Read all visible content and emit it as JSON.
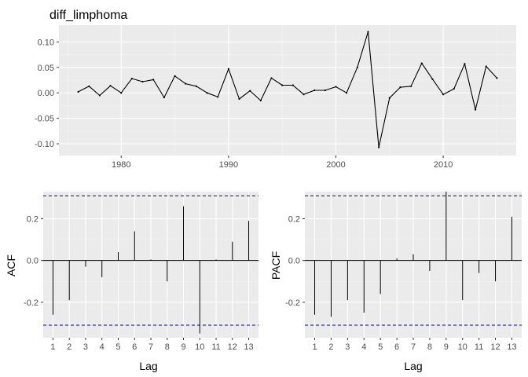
{
  "chart_data": [
    {
      "type": "line",
      "title": "diff_limphoma",
      "xlabel": "",
      "ylabel": "",
      "x": [
        1976,
        1977,
        1978,
        1979,
        1980,
        1981,
        1982,
        1983,
        1984,
        1985,
        1986,
        1987,
        1988,
        1989,
        1990,
        1991,
        1992,
        1993,
        1994,
        1995,
        1996,
        1997,
        1998,
        1999,
        2000,
        2001,
        2002,
        2003,
        2004,
        2005,
        2006,
        2007,
        2008,
        2009,
        2010,
        2011,
        2012,
        2013,
        2014,
        2015
      ],
      "y": [
        0.002,
        0.013,
        -0.005,
        0.014,
        0.0,
        0.028,
        0.022,
        0.026,
        -0.009,
        0.033,
        0.018,
        0.013,
        0.0,
        -0.008,
        0.047,
        -0.012,
        0.004,
        -0.015,
        0.029,
        0.015,
        0.015,
        -0.003,
        0.005,
        0.005,
        0.012,
        0.0,
        0.05,
        0.12,
        -0.107,
        -0.01,
        0.011,
        0.013,
        0.058,
        0.027,
        -0.003,
        0.008,
        0.057,
        -0.033,
        0.052,
        0.029
      ],
      "xlim": [
        1974.2,
        2016.8
      ],
      "ylim": [
        -0.123,
        0.133
      ],
      "xticks": [
        1980,
        1990,
        2000,
        2010
      ],
      "yticks": [
        0.1,
        0.05,
        0.0,
        -0.05,
        -0.1
      ],
      "ytick_labels": [
        "0.10",
        "0.05",
        "0.00",
        "-0.05",
        "-0.10"
      ],
      "grid": true
    },
    {
      "type": "bar",
      "title": "",
      "xlabel": "Lag",
      "ylabel": "ACF",
      "categories": [
        "1",
        "2",
        "3",
        "4",
        "5",
        "6",
        "7",
        "8",
        "9",
        "10",
        "11",
        "12",
        "13"
      ],
      "values": [
        -0.26,
        -0.19,
        -0.03,
        -0.08,
        0.04,
        0.14,
        0.005,
        -0.1,
        0.26,
        -0.35,
        0.005,
        0.09,
        0.19
      ],
      "confidence_limit": 0.31,
      "ylim": [
        -0.37,
        0.33
      ],
      "yticks": [
        0.2,
        0.0,
        -0.2
      ],
      "ytick_labels": [
        "0.2",
        "0.0",
        "-0.2"
      ],
      "grid": true
    },
    {
      "type": "bar",
      "title": "",
      "xlabel": "Lag",
      "ylabel": "PACF",
      "categories": [
        "1",
        "2",
        "3",
        "4",
        "5",
        "6",
        "7",
        "8",
        "9",
        "10",
        "11",
        "12",
        "13"
      ],
      "values": [
        -0.26,
        -0.27,
        -0.19,
        -0.25,
        -0.16,
        0.01,
        0.03,
        -0.05,
        0.33,
        -0.19,
        -0.06,
        -0.1,
        0.21
      ],
      "confidence_limit": 0.31,
      "ylim": [
        -0.37,
        0.33
      ],
      "yticks": [
        0.2,
        0.0,
        -0.2
      ],
      "ytick_labels": [
        "0.2",
        "0.0",
        "-0.2"
      ],
      "grid": true
    }
  ],
  "colors": {
    "panel_bg": "#ebebeb",
    "grid_major": "#ffffff",
    "grid_minor": "#f5f5f5",
    "line": "#000000",
    "ci": "#0000cc"
  }
}
